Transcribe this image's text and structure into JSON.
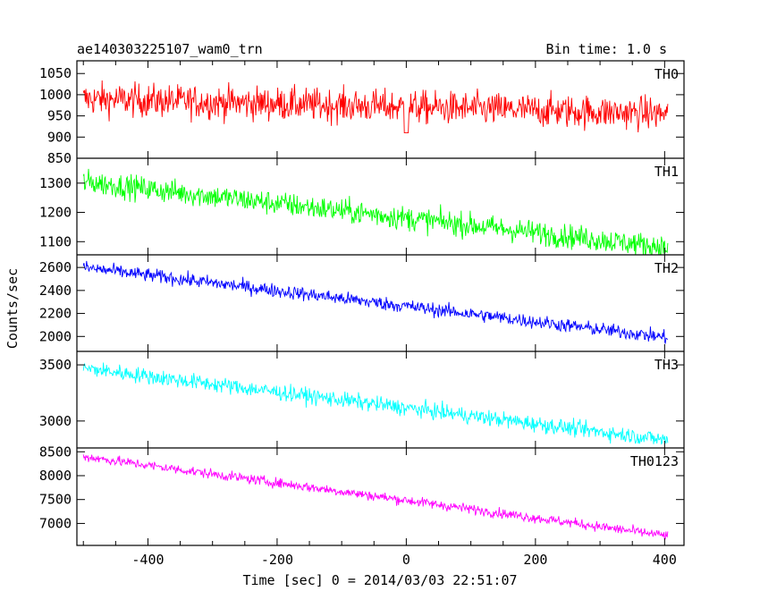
{
  "chart_data": {
    "type": "line",
    "title_left": "ae140303225107_wam0_trn",
    "title_right": "Bin time: 1.0 s",
    "xlabel": "Time [sec] 0 = 2014/03/03 22:51:07",
    "ylabel": "Counts/sec",
    "xlim": [
      -510,
      430
    ],
    "x_ticks": [
      -400,
      -200,
      0,
      200,
      400
    ],
    "x_range": [
      -500,
      405
    ],
    "panels": [
      {
        "name": "TH0",
        "color": "#ff0000",
        "ylim": [
          850,
          1080
        ],
        "y_ticks": [
          850,
          900,
          950,
          1000,
          1050
        ],
        "start": 990,
        "end": 955,
        "noise": 36,
        "gap_dip": true
      },
      {
        "name": "TH1",
        "color": "#00ff00",
        "ylim": [
          1055,
          1385
        ],
        "y_ticks": [
          1100,
          1200,
          1300
        ],
        "start": 1305,
        "end": 1080,
        "noise": 38
      },
      {
        "name": "TH2",
        "color": "#0000ff",
        "ylim": [
          1870,
          2710
        ],
        "y_ticks": [
          2000,
          2200,
          2400,
          2600
        ],
        "start": 2600,
        "end": 1990,
        "noise": 55
      },
      {
        "name": "TH3",
        "color": "#00ffff",
        "ylim": [
          2760,
          3620
        ],
        "y_ticks": [
          3000,
          3500
        ],
        "start": 3470,
        "end": 2830,
        "noise": 65
      },
      {
        "name": "TH0123",
        "color": "#ff00ff",
        "ylim": [
          6540,
          8580
        ],
        "y_ticks": [
          7000,
          7500,
          8000,
          8500
        ],
        "start": 8400,
        "end": 6740,
        "noise": 95
      }
    ]
  }
}
